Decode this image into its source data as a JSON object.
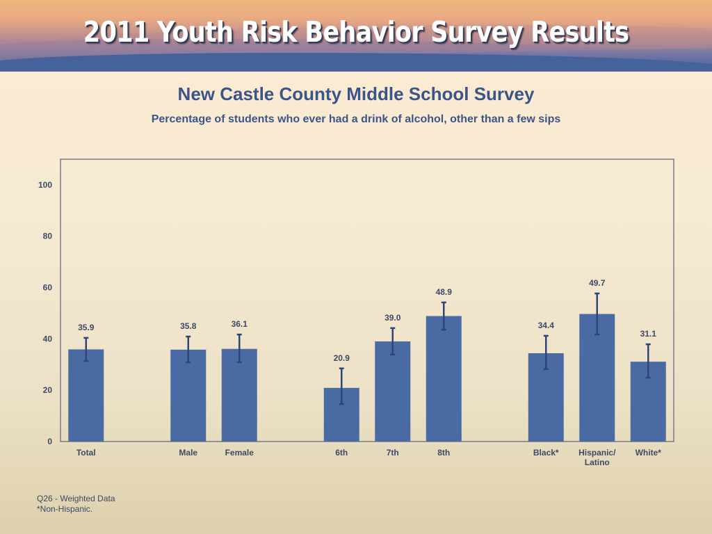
{
  "banner": {
    "title": "2011 Youth Risk Behavior Survey Results"
  },
  "colors": {
    "bar": "#4a6aa3",
    "error_bar": "#2e4677",
    "axis": "#5a6378",
    "text": "#3b5588"
  },
  "footnotes": [
    "Q26 - Weighted Data",
    "*Non-Hispanic."
  ],
  "chart_data": {
    "type": "bar",
    "title": "New Castle County Middle School Survey",
    "subtitle": "Percentage of students who ever had a drink of alcohol, other than a few sips",
    "xlabel": "",
    "ylabel": "",
    "ylim": [
      0,
      110
    ],
    "yticks": [
      0,
      20,
      40,
      60,
      80,
      100
    ],
    "grid": false,
    "legend": "none",
    "slots": 12,
    "categories": [
      {
        "label": [
          "Total"
        ],
        "slot": 0,
        "value": 35.9,
        "value_label": "35.9",
        "ci": [
          31.4,
          40.4
        ]
      },
      {
        "label": [
          "Male"
        ],
        "slot": 2,
        "value": 35.8,
        "value_label": "35.8",
        "ci": [
          30.9,
          40.9
        ]
      },
      {
        "label": [
          "Female"
        ],
        "slot": 3,
        "value": 36.1,
        "value_label": "36.1",
        "ci": [
          30.9,
          41.7
        ]
      },
      {
        "label": [
          "6th"
        ],
        "slot": 5,
        "value": 20.9,
        "value_label": "20.9",
        "ci": [
          14.6,
          28.5
        ]
      },
      {
        "label": [
          "7th"
        ],
        "slot": 6,
        "value": 39.0,
        "value_label": "39.0",
        "ci": [
          33.9,
          44.2
        ]
      },
      {
        "label": [
          "8th"
        ],
        "slot": 7,
        "value": 48.9,
        "value_label": "48.9",
        "ci": [
          43.6,
          54.2
        ]
      },
      {
        "label": [
          "Black*"
        ],
        "slot": 9,
        "value": 34.4,
        "value_label": "34.4",
        "ci": [
          28.2,
          41.2
        ]
      },
      {
        "label": [
          "Hispanic/",
          "Latino"
        ],
        "slot": 10,
        "value": 49.7,
        "value_label": "49.7",
        "ci": [
          41.7,
          57.7
        ]
      },
      {
        "label": [
          "White*"
        ],
        "slot": 11,
        "value": 31.1,
        "value_label": "31.1",
        "ci": [
          24.9,
          37.9
        ]
      }
    ]
  }
}
